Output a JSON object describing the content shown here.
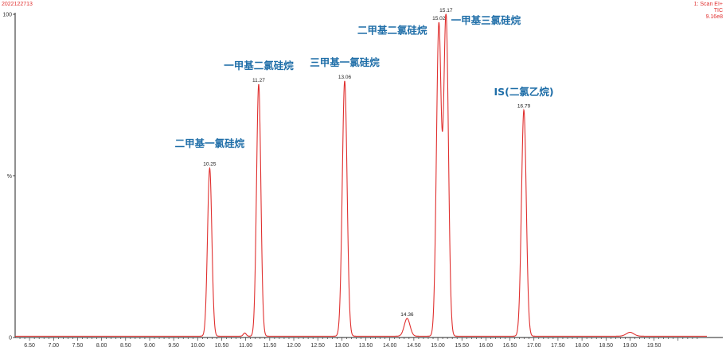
{
  "header": {
    "sample_id": "2022122713",
    "scan_mode": "1: Scan EI+",
    "trace": "TIC",
    "intensity": "9.16e8"
  },
  "chart_data": {
    "type": "line",
    "x": {
      "range": [
        6.2,
        20.6
      ],
      "ticks": [
        "6.50",
        "7.00",
        "7.50",
        "8.00",
        "8.50",
        "9.00",
        "9.50",
        "10.00",
        "10.50",
        "11.00",
        "11.50",
        "12.00",
        "12.50",
        "13.00",
        "13.50",
        "14.00",
        "14.50",
        "15.00",
        "15.50",
        "16.00",
        "16.50",
        "17.00",
        "17.50",
        "18.00",
        "18.50",
        "19.00",
        "19.50"
      ]
    },
    "y": {
      "range": [
        0,
        100
      ],
      "tick_labels": [
        "100",
        "%",
        "0"
      ]
    },
    "grid": false,
    "color": "#e0302f",
    "peaks": [
      {
        "rt": 10.25,
        "height": 52,
        "width": 0.045,
        "label": "10.25"
      },
      {
        "rt": 10.98,
        "height": 1.0,
        "width": 0.03,
        "label": ""
      },
      {
        "rt": 11.27,
        "height": 78,
        "width": 0.045,
        "label": "11.27"
      },
      {
        "rt": 13.06,
        "height": 79,
        "width": 0.05,
        "label": "13.06"
      },
      {
        "rt": 14.36,
        "height": 5.5,
        "width": 0.06,
        "label": "14.36"
      },
      {
        "rt": 15.02,
        "height": 96,
        "width": 0.05,
        "label": "15.02"
      },
      {
        "rt": 15.17,
        "height": 99,
        "width": 0.05,
        "label": "15.17"
      },
      {
        "rt": 16.79,
        "height": 70,
        "width": 0.05,
        "label": "16.79"
      },
      {
        "rt": 19.0,
        "height": 1.2,
        "width": 0.08,
        "label": ""
      }
    ],
    "annotations": [
      {
        "text": "二甲基一氯硅烷",
        "rt": 10.25,
        "y": 59
      },
      {
        "text": "一甲基二氯硅烷",
        "rt": 11.27,
        "y": 83
      },
      {
        "text": "三甲基一氯硅烷",
        "rt": 13.06,
        "y": 84
      },
      {
        "text": "二甲基二氯硅烷",
        "rt": 14.05,
        "y": 94
      },
      {
        "text": "一甲基三氯硅烷",
        "rt": 16.0,
        "y": 97
      },
      {
        "text": "IS(二氯乙烷)",
        "rt": 16.79,
        "y": 75
      }
    ]
  }
}
